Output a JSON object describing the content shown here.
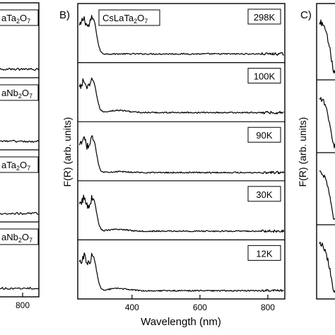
{
  "chart_data": [
    {
      "type": "line",
      "panel": "",
      "title": "",
      "xlabel": "",
      "ylabel": "",
      "x_ticks": [
        800
      ],
      "series": [
        {
          "label_prefix": "aTa",
          "sub1": "2",
          "mid": "O",
          "sub2": "7"
        },
        {
          "label_prefix": "aNb",
          "sub1": "2",
          "mid": "O",
          "sub2": "7"
        },
        {
          "label_prefix": "aTa",
          "sub1": "2",
          "mid": "O",
          "sub2": "7"
        },
        {
          "label_prefix": "aNb",
          "sub1": "2",
          "mid": "O",
          "sub2": "7"
        }
      ]
    },
    {
      "type": "line",
      "panel": "B)",
      "compound": {
        "prefix": "CsLaTa",
        "sub1": "2",
        "mid": "O",
        "sub2": "7"
      },
      "xlabel": "Wavelength (nm)",
      "ylabel": "F(R) (arb. units)",
      "xlim": [
        240,
        850
      ],
      "x_ticks": [
        400,
        600,
        800
      ],
      "edge_nm": 285,
      "series": [
        {
          "name": "298K",
          "peak": 0.88,
          "tail": 0.07,
          "hump": 0.0
        },
        {
          "name": "100K",
          "peak": 0.8,
          "tail": 0.08,
          "hump": 0.05
        },
        {
          "name": "90K",
          "peak": 0.82,
          "tail": 0.06,
          "hump": 0.02
        },
        {
          "name": "30K",
          "peak": 0.82,
          "tail": 0.07,
          "hump": 0.04
        },
        {
          "name": "12K",
          "peak": 0.85,
          "tail": 0.06,
          "hump": 0.05
        }
      ]
    },
    {
      "type": "line",
      "panel": "C)",
      "xlabel": "",
      "ylabel": "F(R) (arb. units)",
      "series_count": 4
    }
  ]
}
